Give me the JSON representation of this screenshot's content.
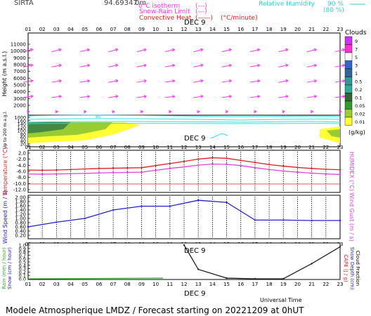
{
  "header": {
    "station": "SIRTA",
    "code": "94.69347",
    "alt": "0m",
    "legend_isotherm": "0°C isotherm",
    "legend_isotherm_sym": "(---)",
    "legend_snow": "Snow-Rain Limit",
    "legend_snow_sym": "(---)",
    "legend_conv": "Convective Heat.",
    "legend_conv_sym": "(——)",
    "legend_conv_unit": "(°C/minute)",
    "legend_rh": "Relative Humidity",
    "legend_rh_90": "90 %",
    "legend_rh_80": "(80 %)"
  },
  "hours": [
    "01",
    "02",
    "03",
    "04",
    "05",
    "06",
    "07",
    "08",
    "09",
    "10",
    "11",
    "12",
    "13",
    "14",
    "15",
    "16",
    "17",
    "18",
    "19",
    "20",
    "21",
    "22",
    "23"
  ],
  "date_label": "DEC  9",
  "panel_wind": {
    "ylabel": "Height  (m  a.s.l.)",
    "yticks": [
      "11000",
      "10000",
      "9000",
      "8000",
      "7000",
      "6000",
      "5000",
      "4000",
      "3000",
      "2000"
    ],
    "contour_label": "80",
    "colors": {
      "arrow": "#ff33ff",
      "rh": "#33dddd"
    }
  },
  "panel_lowlevel": {
    "ylabel": "Up to 200 m a.g.l.",
    "yticks": [
      "1000",
      "160",
      "140",
      "120",
      "100",
      "80",
      "60",
      "40",
      "20"
    ]
  },
  "clouds": {
    "title": "Clouds",
    "levels": [
      "9",
      "7",
      "5",
      "3",
      "1",
      "0.5",
      "0.2",
      "0.1",
      "0.05",
      "0.02",
      "0.01"
    ],
    "unit": "(g/kg)"
  },
  "panel_temp": {
    "ylabel": "Temperature (°C)",
    "rlabel": "HUMIDEX (°C)",
    "yticks": [
      "2.0",
      "-2.0",
      "-4.0",
      "-6.0",
      "-8.0",
      "-10.0",
      "-12.0"
    ]
  },
  "panel_wind_speed": {
    "ylabel": "Wind Speed (m / s)",
    "rlabel": "Wind Gust (m / s)",
    "yticks": [
      "2.00",
      "1.80",
      "1.60",
      "1.40",
      "1.20",
      "1.00",
      "0.80",
      "0.60",
      "0.40",
      "0.20"
    ]
  },
  "panel_rain": {
    "ylabel1": "Rain (mm / hour)",
    "ylabel2": "Snow (cm / hour)",
    "rlabel1": "CAPE (J / g)",
    "rlabel2": "Snow Depth (cm)",
    "rlabel3": "Cloud Fraction",
    "yticks": [
      "1.0",
      "0.9",
      "0.8",
      "0.7",
      "0.6",
      "0.5",
      "0.4",
      "0.3",
      "0.2",
      "0.1",
      "0.0"
    ]
  },
  "xlabel": "Universal Time",
  "footer": "Modele Atmospherique LMDZ / Forecast starting on 20221209 at 0hUT",
  "chart_data": [
    {
      "type": "line",
      "title": "Temperature",
      "x": [
        1,
        2,
        3,
        4,
        5,
        6,
        7,
        8,
        9,
        10,
        11,
        12,
        13,
        14,
        15,
        16,
        17,
        18,
        19,
        20,
        21,
        22,
        23
      ],
      "series": [
        {
          "values": [
            -4.5,
            -4.6,
            -4.5,
            -4.3,
            -4.1,
            -3.9,
            -3.8,
            -3.7,
            -3.6,
            -2.8,
            -2.0,
            -1.2,
            -0.3,
            0.2,
            0.0,
            -0.8,
            -1.6,
            -2.4,
            -3.0,
            -3.5,
            -3.9,
            -4.2,
            -4.4
          ],
          "color": "#dd2222"
        },
        {
          "values": [
            -6.0,
            -6.1,
            -6.0,
            -5.9,
            -5.8,
            -5.6,
            -5.5,
            -5.4,
            -5.3,
            -4.6,
            -3.9,
            -3.3,
            -2.6,
            -2.2,
            -2.3,
            -2.8,
            -3.6,
            -4.3,
            -4.9,
            -5.3,
            -5.7,
            -6.0,
            -6.2
          ],
          "color": "#dd44dd"
        }
      ],
      "ylim": [
        -12,
        2
      ]
    },
    {
      "type": "line",
      "title": "Wind Speed",
      "x": [
        1,
        3,
        5,
        7,
        9,
        11,
        13,
        15,
        17,
        19,
        21,
        23
      ],
      "series": [
        {
          "values": [
            0.6,
            0.82,
            1.0,
            1.4,
            1.58,
            1.58,
            1.86,
            1.76,
            0.92,
            0.92,
            0.9,
            0.9
          ],
          "color": "#2222cc"
        }
      ],
      "ylim": [
        0.2,
        2.0
      ]
    },
    {
      "type": "line",
      "title": "Cloud Fraction",
      "x": [
        12,
        13,
        15,
        17,
        19,
        21,
        23
      ],
      "series": [
        {
          "values": [
            1.0,
            0.28,
            0.02,
            0.0,
            0.0,
            0.45,
            0.95
          ],
          "color": "#222222"
        }
      ],
      "ylim": [
        0,
        1
      ]
    }
  ]
}
